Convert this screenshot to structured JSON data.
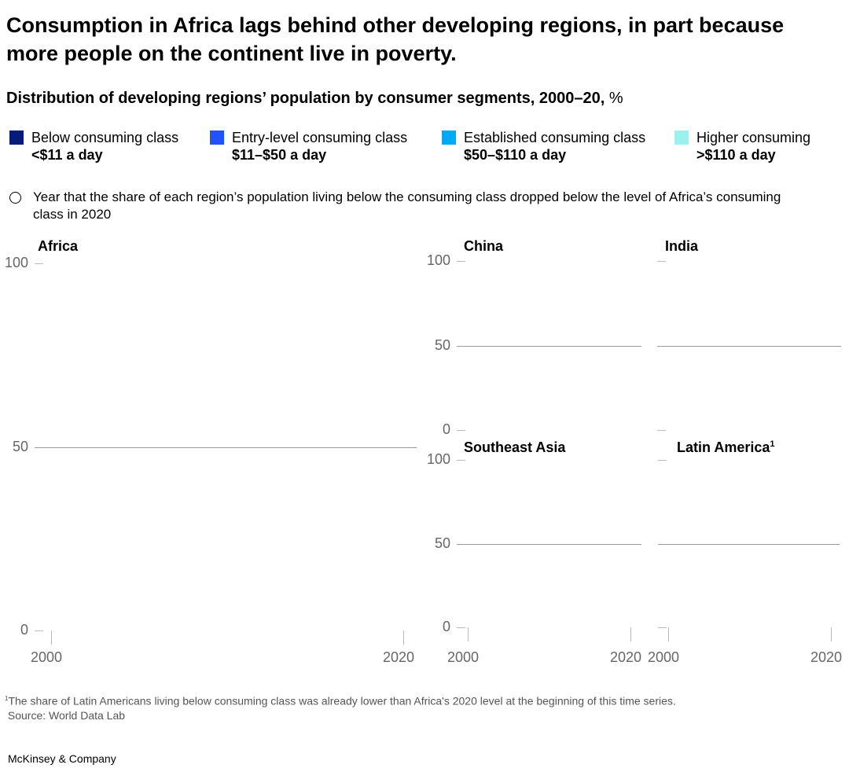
{
  "title": "Consumption in Africa lags behind other developing regions, in part because more people on the continent live in poverty.",
  "subtitle": "Distribution of developing regions’ population by consumer segments, 2000–20,",
  "subtitle_unit": "%",
  "legend": [
    {
      "label": "Below consuming class",
      "range": "<$11 a day",
      "color": "#051c7a"
    },
    {
      "label": "Entry-level consuming class",
      "range": "$11–$50 a day",
      "color": "#2251ff"
    },
    {
      "label": "Established consuming class",
      "range": "$50–$110 a day",
      "color": "#00a9f4"
    },
    {
      "label": "Higher consuming",
      "range": ">$110 a day",
      "color": "#99f2ee"
    }
  ],
  "marker_note": "Year that the share of each region’s population living below the consuming class dropped below the level of Africa’s consuming class in 2020",
  "chart_data": [
    {
      "type": "area",
      "title": "Africa",
      "ylim": [
        0,
        100
      ],
      "yticks": [
        "100",
        "50",
        "0"
      ],
      "xticks": [
        "2000",
        "2020"
      ],
      "series": []
    },
    {
      "type": "area",
      "title": "China",
      "ylim": [
        0,
        100
      ],
      "yticks": [
        "100",
        "50",
        "0"
      ],
      "xticks": [],
      "series": []
    },
    {
      "type": "area",
      "title": "India",
      "ylim": [
        0,
        100
      ],
      "yticks": [],
      "xticks": [],
      "series": []
    },
    {
      "type": "area",
      "title": "Southeast Asia",
      "ylim": [
        0,
        100
      ],
      "yticks": [
        "100",
        "50",
        "0"
      ],
      "xticks": [
        "2000",
        "2020"
      ],
      "series": []
    },
    {
      "type": "area",
      "title": "Latin America",
      "title_sup": "1",
      "ylim": [
        0,
        100
      ],
      "yticks": [],
      "xticks": [
        "2000",
        "2020"
      ],
      "series": []
    }
  ],
  "footnote_sup": "1",
  "footnote": "The share of Latin Americans living below consuming class was already lower than Africa's 2020 level at the beginning of this time series.",
  "source": "Source: World Data Lab",
  "brand": "McKinsey & Company"
}
